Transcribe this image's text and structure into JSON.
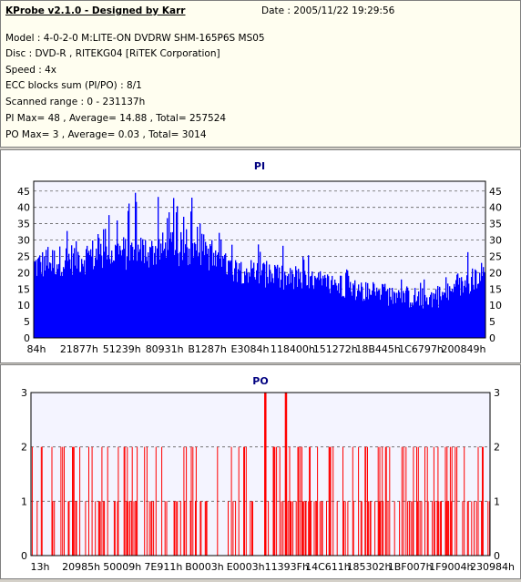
{
  "header": {
    "title": "KProbe v2.1.0 - Designed by Karr",
    "date": "Date : 2005/11/22 19:29:56",
    "lines": [
      "Model : 4-0-2-0 M:LITE-ON DVDRW SHM-165P6S MS05",
      "Disc : DVD-R , RITEKG04 [RiTEK Corporation]",
      "Speed : 4x",
      "ECC blocks sum (PI/PO) : 8/1",
      "Scanned range : 0 - 231137h",
      "PI Max= 48 , Average= 14.88 , Total= 257524",
      "PO Max= 3 , Average= 0.03 , Total= 3014"
    ]
  },
  "colors": {
    "pi": "#0000ff",
    "po": "#ff0000",
    "plot_bg": "#f4f4ff",
    "grid": "#606060",
    "title": "#000080"
  },
  "chart_data": [
    {
      "type": "bar",
      "title": "PI",
      "ylim": [
        0,
        48
      ],
      "yticks": [
        0,
        5,
        10,
        15,
        20,
        25,
        30,
        35,
        40,
        45
      ],
      "xticks": [
        "84h",
        "21877h",
        "51239h",
        "80931h",
        "B1287h",
        "E3084h",
        "118400h",
        "151272h",
        "18B445h",
        "1C6797h",
        "200849h"
      ],
      "grid": "dashed-horizontal",
      "series_color": "#0000ff",
      "envelope": [
        [
          0.0,
          22,
          7,
          30
        ],
        [
          0.03,
          23,
          7,
          34
        ],
        [
          0.07,
          24,
          7,
          36
        ],
        [
          0.12,
          25,
          8,
          40
        ],
        [
          0.18,
          26,
          8,
          42
        ],
        [
          0.23,
          26,
          8,
          46
        ],
        [
          0.28,
          27,
          8,
          44
        ],
        [
          0.33,
          27,
          8,
          45
        ],
        [
          0.38,
          27,
          8,
          40
        ],
        [
          0.4,
          23,
          6,
          33
        ],
        [
          0.45,
          21,
          6,
          29
        ],
        [
          0.5,
          20,
          6,
          27
        ],
        [
          0.55,
          18,
          6,
          25
        ],
        [
          0.62,
          17,
          5,
          23
        ],
        [
          0.68,
          16,
          5,
          21
        ],
        [
          0.74,
          14,
          5,
          19
        ],
        [
          0.8,
          13,
          5,
          19
        ],
        [
          0.86,
          12,
          5,
          17
        ],
        [
          0.91,
          13,
          5,
          19
        ],
        [
          0.95,
          16,
          5,
          23
        ],
        [
          1.0,
          20,
          6,
          28
        ]
      ]
    },
    {
      "type": "bar",
      "title": "PO",
      "ylim": [
        0,
        3
      ],
      "yticks": [
        0,
        1,
        2,
        3
      ],
      "xticks": [
        "13h",
        "20985h",
        "50009h",
        "7E911h",
        "B0003h",
        "E0003h",
        "11393Fh",
        "14C611h",
        "185302h",
        "1BF007h",
        "1F9004h",
        "230984h"
      ],
      "grid": "dashed-horizontal",
      "series_color": "#ff0000",
      "spikes_at": [
        0.508,
        0.553
      ],
      "density": [
        [
          0.0,
          0.22
        ],
        [
          0.12,
          0.28
        ],
        [
          0.35,
          0.3
        ],
        [
          0.5,
          0.35
        ],
        [
          0.7,
          0.32
        ],
        [
          0.9,
          0.45
        ],
        [
          1.0,
          0.55
        ]
      ]
    }
  ]
}
